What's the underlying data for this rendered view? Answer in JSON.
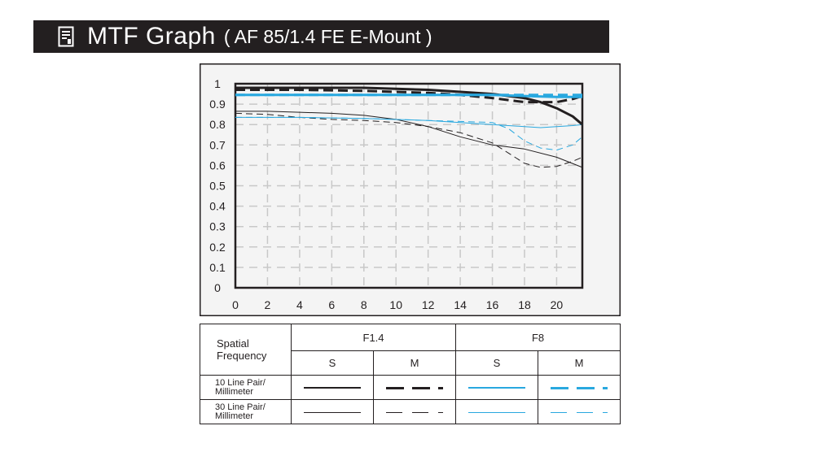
{
  "header": {
    "title": "MTF Graph",
    "subtitle": "( AF 85/1.4 FE E-Mount )",
    "icon": "document-icon"
  },
  "colors": {
    "black": "#231f20",
    "blue": "#29a8df",
    "grid": "#c8c8c8",
    "title_bg": "#231f20"
  },
  "legend": {
    "header_label": "Spatial Frequency",
    "groups": [
      "F1.4",
      "F8"
    ],
    "sub_headers": [
      "S",
      "M",
      "S",
      "M"
    ],
    "rows": [
      "10 Line Pair/ Millimeter",
      "30 Line Pair/ Millimeter"
    ]
  },
  "chart_data": {
    "type": "line",
    "xlim": [
      0,
      21.6
    ],
    "ylim": [
      0,
      1
    ],
    "x_ticks": [
      0,
      2,
      4,
      6,
      8,
      10,
      12,
      14,
      16,
      18,
      20
    ],
    "y_ticks": [
      "0",
      "0.1",
      "0.2",
      "0.3",
      "0.4",
      "0.5",
      "0.6",
      "0.7",
      "0.8",
      "0.9",
      "1"
    ],
    "grid": true,
    "series": [
      {
        "name": "F1.4 S 10 Line Pair/ Millimeter",
        "style": "solid",
        "color": "#231f20",
        "width": "thick",
        "x": [
          0,
          4,
          8,
          10,
          12,
          14,
          16,
          17,
          18,
          19,
          20,
          21,
          21.6
        ],
        "y": [
          0.98,
          0.98,
          0.98,
          0.975,
          0.97,
          0.96,
          0.95,
          0.94,
          0.93,
          0.91,
          0.88,
          0.84,
          0.8
        ]
      },
      {
        "name": "F1.4 M 10 Line Pair/ Millimeter",
        "style": "dashed",
        "color": "#231f20",
        "width": "thick",
        "x": [
          0,
          4,
          8,
          10,
          12,
          14,
          16,
          17,
          18,
          19,
          20,
          21,
          21.6
        ],
        "y": [
          0.97,
          0.97,
          0.965,
          0.96,
          0.955,
          0.945,
          0.93,
          0.92,
          0.91,
          0.91,
          0.91,
          0.925,
          0.94
        ]
      },
      {
        "name": "F8 S 10 Line Pair/ Millimeter",
        "style": "solid",
        "color": "#29a8df",
        "width": "thick",
        "x": [
          0,
          4,
          8,
          12,
          16,
          18,
          20,
          21.6
        ],
        "y": [
          0.945,
          0.945,
          0.945,
          0.945,
          0.945,
          0.94,
          0.935,
          0.935
        ]
      },
      {
        "name": "F8 M 10 Line Pair/ Millimeter",
        "style": "dashed",
        "color": "#29a8df",
        "width": "thick",
        "x": [
          0,
          4,
          8,
          12,
          16,
          18,
          20,
          21.6
        ],
        "y": [
          0.945,
          0.945,
          0.945,
          0.945,
          0.945,
          0.945,
          0.945,
          0.945
        ]
      },
      {
        "name": "F1.4 S 30 Line Pair/ Millimeter",
        "style": "solid",
        "color": "#231f20",
        "width": "thin",
        "x": [
          0,
          2,
          4,
          6,
          8,
          10,
          12,
          14,
          16,
          18,
          20,
          21.6
        ],
        "y": [
          0.865,
          0.865,
          0.86,
          0.855,
          0.845,
          0.825,
          0.79,
          0.74,
          0.7,
          0.68,
          0.64,
          0.59
        ]
      },
      {
        "name": "F1.4 M 30 Line Pair/ Millimeter",
        "style": "dashed",
        "color": "#231f20",
        "width": "thin",
        "x": [
          0,
          2,
          4,
          6,
          8,
          10,
          12,
          14,
          16,
          17,
          18,
          19,
          20,
          21,
          21.6
        ],
        "y": [
          0.855,
          0.85,
          0.835,
          0.825,
          0.82,
          0.81,
          0.79,
          0.76,
          0.71,
          0.66,
          0.61,
          0.59,
          0.595,
          0.62,
          0.64
        ]
      },
      {
        "name": "F8 S 30 Line Pair/ Millimeter",
        "style": "solid",
        "color": "#29a8df",
        "width": "thin",
        "x": [
          0,
          4,
          8,
          12,
          14,
          16,
          17,
          18,
          19,
          20,
          21,
          21.6
        ],
        "y": [
          0.835,
          0.835,
          0.83,
          0.82,
          0.81,
          0.8,
          0.795,
          0.79,
          0.785,
          0.79,
          0.795,
          0.8
        ]
      },
      {
        "name": "F8 M 30 Line Pair/ Millimeter",
        "style": "dashed",
        "color": "#29a8df",
        "width": "thin",
        "x": [
          0,
          4,
          8,
          12,
          14,
          16,
          17,
          18,
          19,
          20,
          21,
          21.6
        ],
        "y": [
          0.835,
          0.835,
          0.83,
          0.82,
          0.815,
          0.81,
          0.78,
          0.72,
          0.685,
          0.675,
          0.7,
          0.74
        ]
      }
    ]
  }
}
